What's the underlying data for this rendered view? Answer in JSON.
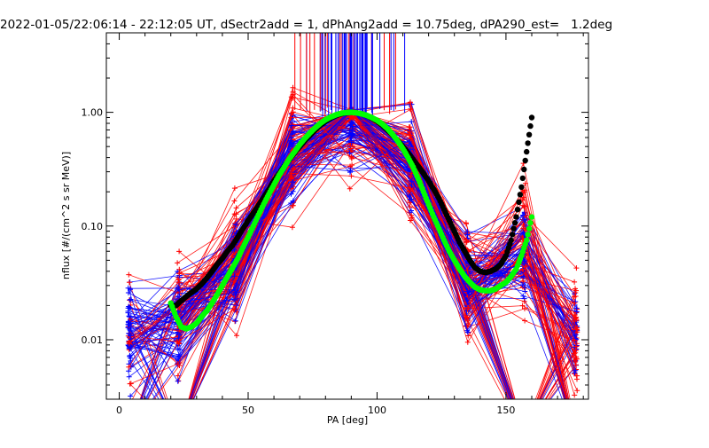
{
  "chart_data": {
    "type": "scatter",
    "title": "2022-01-05/22:06:14 - 22:12:05 UT, dSectr2add = 1, dPhAng2add = 10.75deg, dPA290_est=   1.2deg",
    "xlabel": "PA [deg]",
    "ylabel": "nflux [#/(cm^2 s sr MeV)]",
    "xlim": [
      -5,
      182
    ],
    "ylim": [
      0.003,
      5
    ],
    "yscale": "log",
    "x_ticks": [
      0,
      50,
      100,
      150
    ],
    "x_tick_labels": [
      "0",
      "50",
      "100",
      "150"
    ],
    "y_ticks": [
      0.01,
      0.1,
      1.0
    ],
    "y_tick_labels": [
      "0.01",
      "0.10",
      "1.00"
    ],
    "grid": false,
    "colors": {
      "red": "#ff0000",
      "blue": "#0000ff",
      "black": "#000000",
      "green": "#00ff00"
    },
    "marker_pa_columns": [
      4,
      23,
      45,
      67,
      90,
      113,
      135,
      157,
      177
    ],
    "series": [
      {
        "key": "fit_black",
        "color": "#000000",
        "x": [
          20,
          22,
          24,
          26,
          28,
          30,
          32,
          34,
          36,
          38,
          40,
          42,
          44,
          46,
          48,
          50,
          52,
          54,
          56,
          58,
          60,
          62,
          64,
          66,
          68,
          70,
          72,
          74,
          76,
          78,
          80,
          82,
          84,
          86,
          88,
          90,
          92,
          94,
          96,
          98,
          100,
          102,
          104,
          106,
          108,
          110,
          112,
          114,
          116,
          118,
          120,
          122,
          124,
          126,
          128,
          130,
          132,
          134,
          136,
          138,
          140,
          142,
          144,
          146,
          148,
          150,
          152,
          154,
          156,
          158,
          160
        ],
        "y": [
          0.02,
          0.02,
          0.022,
          0.024,
          0.026,
          0.028,
          0.031,
          0.035,
          0.04,
          0.046,
          0.052,
          0.06,
          0.068,
          0.08,
          0.095,
          0.112,
          0.13,
          0.152,
          0.178,
          0.21,
          0.25,
          0.29,
          0.335,
          0.385,
          0.44,
          0.5,
          0.565,
          0.63,
          0.7,
          0.77,
          0.835,
          0.89,
          0.935,
          0.97,
          0.99,
          1.0,
          0.99,
          0.97,
          0.935,
          0.89,
          0.835,
          0.77,
          0.7,
          0.63,
          0.565,
          0.5,
          0.44,
          0.385,
          0.335,
          0.29,
          0.25,
          0.21,
          0.175,
          0.14,
          0.112,
          0.09,
          0.072,
          0.06,
          0.05,
          0.043,
          0.04,
          0.039,
          0.04,
          0.042,
          0.046,
          0.055,
          0.075,
          0.12,
          0.22,
          0.45,
          0.9
        ]
      },
      {
        "key": "fit_green",
        "color": "#00ff00",
        "x": [
          20,
          22,
          24,
          26,
          28,
          30,
          32,
          34,
          36,
          38,
          40,
          42,
          44,
          46,
          48,
          50,
          52,
          54,
          56,
          58,
          60,
          62,
          64,
          66,
          68,
          70,
          72,
          74,
          76,
          78,
          80,
          82,
          84,
          86,
          88,
          90,
          92,
          94,
          96,
          98,
          100,
          102,
          104,
          106,
          108,
          110,
          112,
          114,
          116,
          118,
          120,
          122,
          124,
          126,
          128,
          130,
          132,
          134,
          136,
          138,
          140,
          142,
          144,
          146,
          148,
          150,
          152,
          154,
          156,
          158,
          160
        ],
        "y": [
          0.021,
          0.016,
          0.013,
          0.0125,
          0.013,
          0.014,
          0.016,
          0.018,
          0.021,
          0.025,
          0.03,
          0.036,
          0.043,
          0.052,
          0.065,
          0.08,
          0.1,
          0.125,
          0.155,
          0.19,
          0.23,
          0.28,
          0.33,
          0.39,
          0.45,
          0.52,
          0.59,
          0.66,
          0.73,
          0.8,
          0.86,
          0.91,
          0.95,
          0.98,
          0.995,
          1.0,
          0.99,
          0.97,
          0.94,
          0.9,
          0.85,
          0.79,
          0.72,
          0.64,
          0.56,
          0.48,
          0.4,
          0.33,
          0.26,
          0.2,
          0.155,
          0.12,
          0.095,
          0.075,
          0.06,
          0.05,
          0.042,
          0.036,
          0.032,
          0.029,
          0.0275,
          0.027,
          0.027,
          0.028,
          0.03,
          0.032,
          0.036,
          0.042,
          0.055,
          0.075,
          0.12
        ]
      }
    ]
  }
}
